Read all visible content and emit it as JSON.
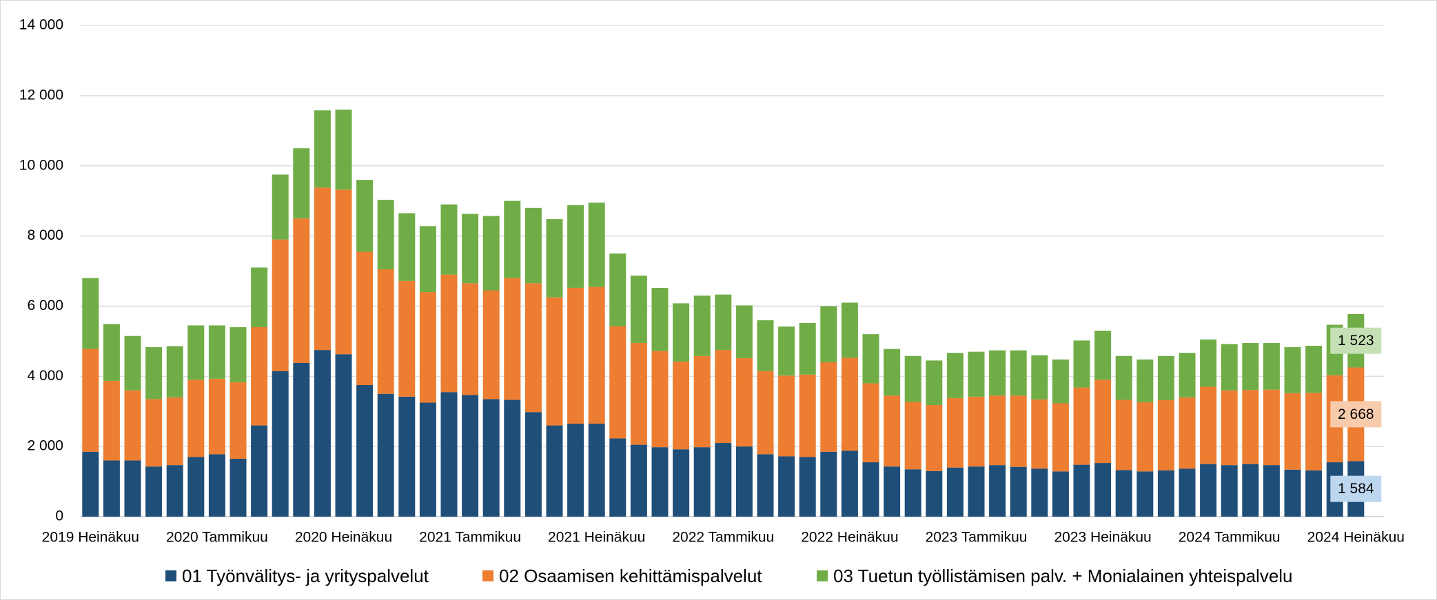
{
  "chart_data": {
    "type": "stacked-bar",
    "categories": [
      "2019 Heinäkuu",
      null,
      null,
      null,
      null,
      null,
      "2020 Tammikuu",
      null,
      null,
      null,
      null,
      null,
      "2020 Heinäkuu",
      null,
      null,
      null,
      null,
      null,
      "2021 Tammikuu",
      null,
      null,
      null,
      null,
      null,
      "2021 Heinäkuu",
      null,
      null,
      null,
      null,
      null,
      "2022 Tammikuu",
      null,
      null,
      null,
      null,
      null,
      "2022 Heinäkuu",
      null,
      null,
      null,
      null,
      null,
      "2023 Tammikuu",
      null,
      null,
      null,
      null,
      null,
      "2023 Heinäkuu",
      null,
      null,
      null,
      null,
      null,
      "2024 Tammikuu",
      null,
      null,
      null,
      null,
      null,
      "2024 Heinäkuu"
    ],
    "series": [
      {
        "name": "01 Työnvälitys- ja yrityspalvelut",
        "color": "#1f4e79",
        "label_color": "#bdd7ee",
        "values": [
          1850,
          1600,
          1600,
          1430,
          1470,
          1700,
          1780,
          1650,
          2600,
          4150,
          4380,
          4750,
          4630,
          3750,
          3500,
          3420,
          3250,
          3550,
          3470,
          3350,
          3330,
          2980,
          2600,
          2650,
          2650,
          2230,
          2050,
          1980,
          1920,
          1980,
          2100,
          2000,
          1780,
          1720,
          1700,
          1850,
          1880,
          1550,
          1430,
          1350,
          1300,
          1400,
          1430,
          1470,
          1420,
          1370,
          1290,
          1480,
          1530,
          1330,
          1290,
          1320,
          1370,
          1500,
          1470,
          1500,
          1470,
          1340,
          1320,
          1550,
          1584
        ],
        "value_labels": [
          null,
          null,
          null,
          null,
          null,
          null,
          null,
          null,
          null,
          null,
          null,
          null,
          null,
          null,
          null,
          null,
          null,
          null,
          null,
          null,
          null,
          null,
          null,
          null,
          null,
          null,
          null,
          null,
          null,
          null,
          null,
          null,
          null,
          null,
          null,
          null,
          null,
          null,
          null,
          null,
          null,
          null,
          null,
          null,
          null,
          null,
          null,
          null,
          null,
          null,
          null,
          null,
          null,
          null,
          null,
          null,
          null,
          null,
          null,
          null,
          "1 584"
        ]
      },
      {
        "name": "02 Osaamisen kehittämispalvelut",
        "color": "#ed7d31",
        "label_color": "#f8cbad",
        "values": [
          2930,
          2270,
          2000,
          1920,
          1930,
          2200,
          2150,
          2180,
          2800,
          3750,
          4120,
          4630,
          4690,
          3800,
          3550,
          3300,
          3150,
          3350,
          3180,
          3100,
          3470,
          3670,
          3650,
          3870,
          3900,
          3200,
          2900,
          2740,
          2500,
          2600,
          2650,
          2520,
          2370,
          2300,
          2350,
          2550,
          2650,
          2250,
          2020,
          1920,
          1880,
          1980,
          1990,
          1980,
          2030,
          1970,
          1940,
          2200,
          2370,
          2000,
          1970,
          2000,
          2030,
          2200,
          2130,
          2110,
          2150,
          2180,
          2210,
          2480,
          2668
        ],
        "value_labels": [
          null,
          null,
          null,
          null,
          null,
          null,
          null,
          null,
          null,
          null,
          null,
          null,
          null,
          null,
          null,
          null,
          null,
          null,
          null,
          null,
          null,
          null,
          null,
          null,
          null,
          null,
          null,
          null,
          null,
          null,
          null,
          null,
          null,
          null,
          null,
          null,
          null,
          null,
          null,
          null,
          null,
          null,
          null,
          null,
          null,
          null,
          null,
          null,
          null,
          null,
          null,
          null,
          null,
          null,
          null,
          null,
          null,
          null,
          null,
          null,
          "2 668"
        ]
      },
      {
        "name": "03 Tuetun työllistämisen palv. + Monialainen yhteispalvelu",
        "color": "#70ad47",
        "label_color": "#c5e0b4",
        "values": [
          2020,
          1620,
          1550,
          1480,
          1460,
          1550,
          1520,
          1570,
          1700,
          1850,
          2000,
          2200,
          2280,
          2050,
          1980,
          1930,
          1880,
          2000,
          1980,
          2120,
          2200,
          2150,
          2230,
          2360,
          2400,
          2070,
          1920,
          1800,
          1660,
          1720,
          1580,
          1500,
          1450,
          1400,
          1470,
          1600,
          1570,
          1400,
          1330,
          1310,
          1270,
          1290,
          1280,
          1290,
          1290,
          1260,
          1250,
          1340,
          1400,
          1250,
          1220,
          1260,
          1270,
          1350,
          1320,
          1340,
          1330,
          1310,
          1340,
          1440,
          1523
        ],
        "value_labels": [
          null,
          null,
          null,
          null,
          null,
          null,
          null,
          null,
          null,
          null,
          null,
          null,
          null,
          null,
          null,
          null,
          null,
          null,
          null,
          null,
          null,
          null,
          null,
          null,
          null,
          null,
          null,
          null,
          null,
          null,
          null,
          null,
          null,
          null,
          null,
          null,
          null,
          null,
          null,
          null,
          null,
          null,
          null,
          null,
          null,
          null,
          null,
          null,
          null,
          null,
          null,
          null,
          null,
          null,
          null,
          null,
          null,
          null,
          null,
          null,
          "1 523"
        ]
      }
    ],
    "ylim": [
      0,
      14000
    ],
    "yticks": [
      0,
      {
        "value": 2000,
        "label": "2 000"
      },
      {
        "value": 4000,
        "label": "4 000"
      },
      {
        "value": 6000,
        "label": "6 000"
      },
      {
        "value": 8000,
        "label": "8 000"
      },
      {
        "value": 10000,
        "label": "10 000"
      },
      {
        "value": 12000,
        "label": "12 000"
      },
      {
        "value": 14000,
        "label": "14 000"
      }
    ],
    "grid": true,
    "legend": "bottom"
  }
}
